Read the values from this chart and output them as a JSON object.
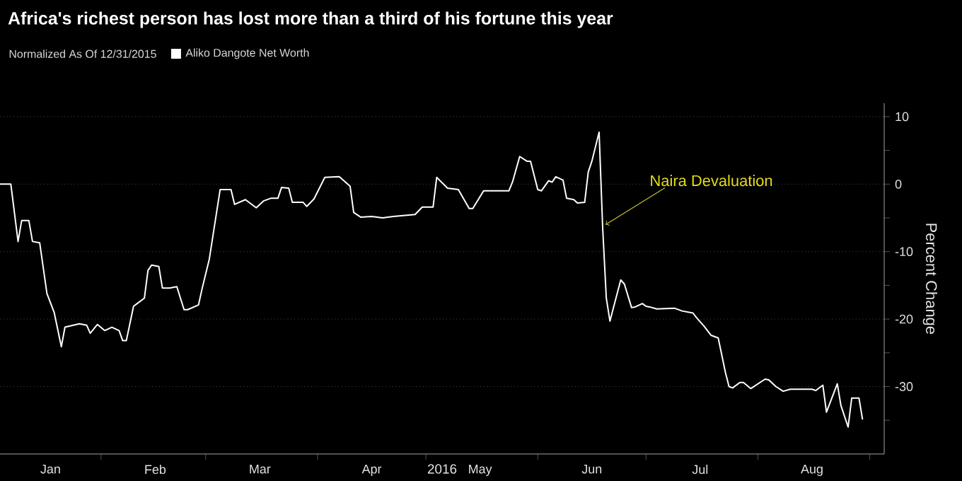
{
  "chart_data": {
    "type": "line",
    "title": "Africa's richest person has lost more than a third of his fortune this year",
    "subtitle": "Normalized As Of 12/31/2015",
    "xlabel": "2016",
    "ylabel": "Percent Change",
    "legend": "top left",
    "grid": "y",
    "xlim": [
      "2016-01-04",
      "2016-09-05"
    ],
    "ylim": [
      -40,
      12
    ],
    "xticks": [
      {
        "value": "2016-01-18",
        "label": "Jan"
      },
      {
        "value": "2016-02-01",
        "label": null
      },
      {
        "value": "2016-02-16",
        "label": "Feb"
      },
      {
        "value": "2016-03-01",
        "label": null
      },
      {
        "value": "2016-03-16",
        "label": "Mar"
      },
      {
        "value": "2016-04-01",
        "label": null
      },
      {
        "value": "2016-04-16",
        "label": "Apr"
      },
      {
        "value": "2016-05-01",
        "label": null
      },
      {
        "value": "2016-05-16",
        "label": "May"
      },
      {
        "value": "2016-06-01",
        "label": null
      },
      {
        "value": "2016-06-16",
        "label": "Jun"
      },
      {
        "value": "2016-07-01",
        "label": null
      },
      {
        "value": "2016-07-16",
        "label": "Jul"
      },
      {
        "value": "2016-08-01",
        "label": null
      },
      {
        "value": "2016-08-16",
        "label": "Aug"
      },
      {
        "value": "2016-09-01",
        "label": null
      }
    ],
    "yticks": [
      {
        "value": -35,
        "label": null
      },
      -30,
      {
        "value": -25,
        "label": null
      },
      -20,
      {
        "value": -15,
        "label": null
      },
      -10,
      {
        "value": -5,
        "label": null
      },
      0,
      {
        "value": 5,
        "label": null
      },
      10
    ],
    "annotations": [
      {
        "text": "Naira Devaluation",
        "x": "2016-06-19",
        "y": -6
      }
    ],
    "series": [
      {
        "name": "Aliko Dangote Net Worth",
        "color": "#ffffff",
        "x": [
          "2016-01-04",
          "2016-01-07",
          "2016-01-09",
          "2016-01-10",
          "2016-01-12",
          "2016-01-13",
          "2016-01-15",
          "2016-01-17",
          "2016-01-19",
          "2016-01-21",
          "2016-01-22",
          "2016-01-26",
          "2016-01-28",
          "2016-01-29",
          "2016-01-31",
          "2016-02-02",
          "2016-02-04",
          "2016-02-06",
          "2016-02-07",
          "2016-02-08",
          "2016-02-10",
          "2016-02-11",
          "2016-02-13",
          "2016-02-14",
          "2016-02-15",
          "2016-02-17",
          "2016-02-18",
          "2016-02-20",
          "2016-02-22",
          "2016-02-24",
          "2016-02-25",
          "2016-02-28",
          "2016-02-29",
          "2016-03-02",
          "2016-03-05",
          "2016-03-08",
          "2016-03-09",
          "2016-03-12",
          "2016-03-15",
          "2016-03-17",
          "2016-03-19",
          "2016-03-21",
          "2016-03-22",
          "2016-03-24",
          "2016-03-25",
          "2016-03-28",
          "2016-03-29",
          "2016-03-31",
          "2016-04-03",
          "2016-04-07",
          "2016-04-10",
          "2016-04-11",
          "2016-04-13",
          "2016-04-16",
          "2016-04-19",
          "2016-04-22",
          "2016-04-28",
          "2016-04-30",
          "2016-05-03",
          "2016-05-04",
          "2016-05-07",
          "2016-05-10",
          "2016-05-13",
          "2016-05-14",
          "2016-05-17",
          "2016-05-24",
          "2016-05-25",
          "2016-05-27",
          "2016-05-29",
          "2016-05-30",
          "2016-06-01",
          "2016-06-02",
          "2016-06-04",
          "2016-06-05",
          "2016-06-06",
          "2016-06-08",
          "2016-06-09",
          "2016-06-11",
          "2016-06-12",
          "2016-06-14",
          "2016-06-15",
          "2016-06-16",
          "2016-06-18",
          "2016-06-19",
          "2016-06-20",
          "2016-06-21",
          "2016-06-24",
          "2016-06-25",
          "2016-06-27",
          "2016-06-28",
          "2016-06-30",
          "2016-07-01",
          "2016-07-02",
          "2016-07-04",
          "2016-07-09",
          "2016-07-11",
          "2016-07-14",
          "2016-07-15",
          "2016-07-17",
          "2016-07-19",
          "2016-07-21",
          "2016-07-23",
          "2016-07-24",
          "2016-07-25",
          "2016-07-27",
          "2016-07-28",
          "2016-07-30",
          "2016-08-01",
          "2016-08-03",
          "2016-08-04",
          "2016-08-06",
          "2016-08-08",
          "2016-08-10",
          "2016-08-13",
          "2016-08-16",
          "2016-08-17",
          "2016-08-19",
          "2016-08-20",
          "2016-08-23",
          "2016-08-24",
          "2016-08-26",
          "2016-08-27",
          "2016-08-29",
          "2016-08-30"
        ],
        "values": [
          0,
          0,
          -8.5,
          -5.4,
          -5.4,
          -8.5,
          -8.7,
          -16.2,
          -19,
          -24.1,
          -21.2,
          -20.7,
          -20.9,
          -22.1,
          -20.8,
          -21.7,
          -21.2,
          -21.7,
          -23.2,
          -23.2,
          -18.1,
          -17.7,
          -16.9,
          -12.8,
          -12,
          -12.2,
          -15.4,
          -15.4,
          -15.2,
          -18.6,
          -18.6,
          -17.9,
          -15.5,
          -11.1,
          -0.8,
          -0.8,
          -3,
          -2.3,
          -3.5,
          -2.5,
          -2.1,
          -2.1,
          -0.5,
          -0.6,
          -2.7,
          -2.7,
          -3.3,
          -2.2,
          1,
          1.1,
          -0.3,
          -4.2,
          -4.9,
          -4.8,
          -5,
          -4.8,
          -4.5,
          -3.4,
          -3.4,
          1,
          -0.6,
          -0.8,
          -3.6,
          -3.6,
          -1,
          -1,
          0.3,
          4.1,
          3.4,
          3.4,
          -0.8,
          -1,
          0.5,
          0.3,
          1.1,
          0.6,
          -2.1,
          -2.3,
          -2.8,
          -2.7,
          1.8,
          3.4,
          7.7,
          -6.6,
          -16.9,
          -20.3,
          -14.2,
          -14.8,
          -18.3,
          -18.2,
          -17.7,
          -18.1,
          -18.2,
          -18.5,
          -18.4,
          -18.8,
          -19.1,
          -19.8,
          -21,
          -22.4,
          -22.8,
          -27.9,
          -30,
          -30.2,
          -29.4,
          -29.4,
          -30.3,
          -29.6,
          -28.9,
          -29,
          -30,
          -30.7,
          -30.4,
          -30.4,
          -30.4,
          -30.6,
          -29.8,
          -33.8,
          -29.6,
          -32.8,
          -36,
          -31.7,
          -31.7,
          -34.9
        ]
      }
    ]
  }
}
